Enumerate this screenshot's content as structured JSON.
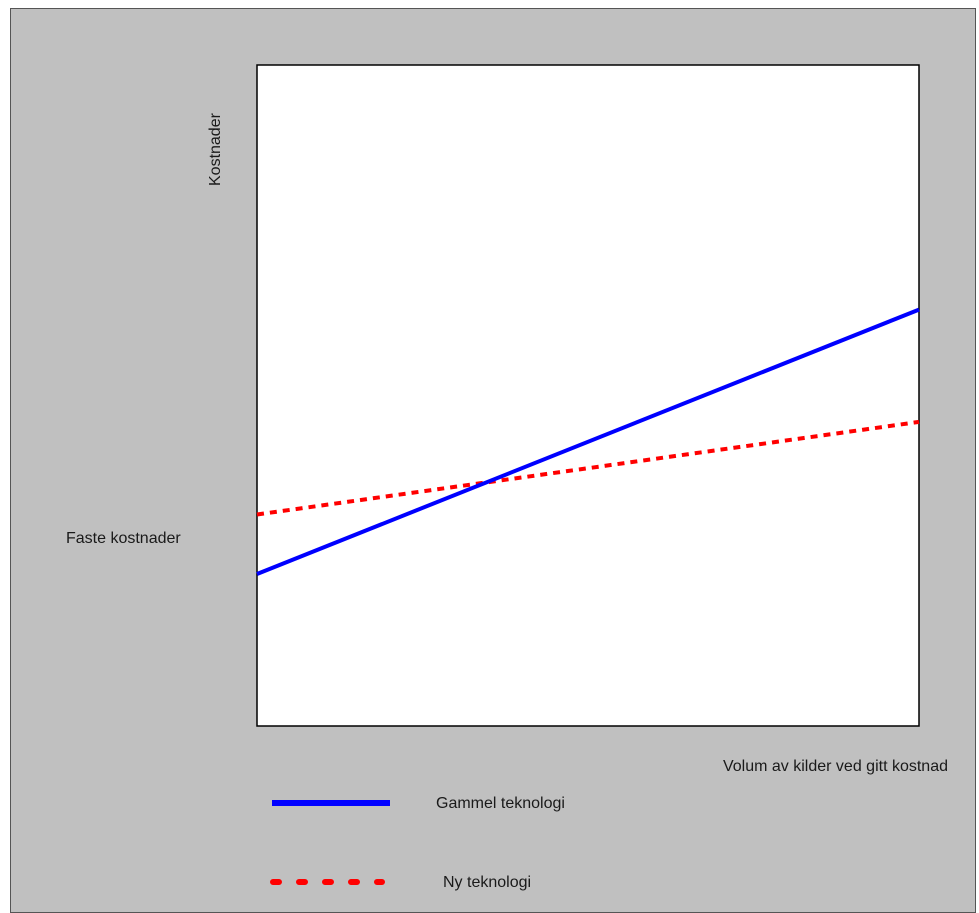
{
  "chart_data": {
    "type": "line",
    "title": "",
    "xlabel": "Volum av kilder ved gitt kostnad",
    "ylabel": "Kostnader",
    "y_annotation": "Faste kostnader",
    "xlim": [
      0,
      100
    ],
    "ylim": [
      0,
      100
    ],
    "grid": false,
    "legend_position": "bottom-left",
    "series": [
      {
        "name": "Gammel teknologi",
        "style": "solid",
        "color": "#0000ff",
        "x": [
          0,
          100
        ],
        "y": [
          23,
          63
        ]
      },
      {
        "name": "Ny teknologi",
        "style": "dotted",
        "color": "#ff0000",
        "x": [
          0,
          100
        ],
        "y": [
          32,
          46
        ]
      }
    ]
  }
}
